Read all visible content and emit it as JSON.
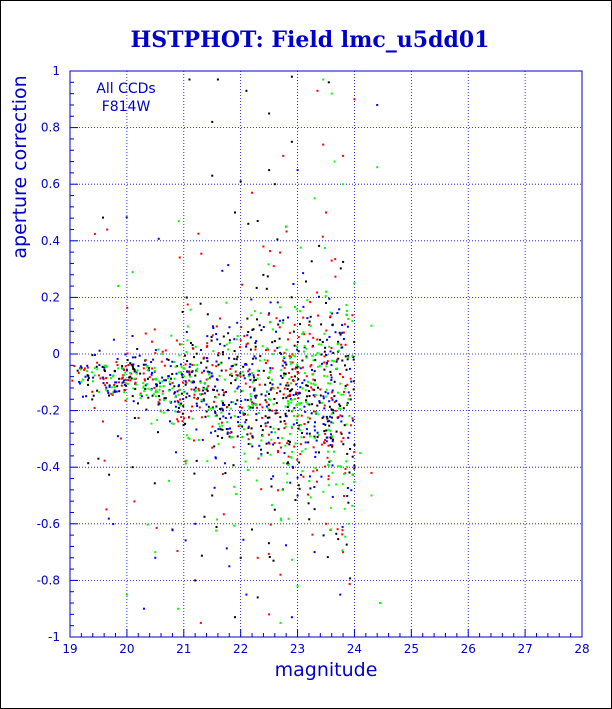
{
  "chart_data": {
    "type": "scatter",
    "title": "HSTPHOT: Field lmc_u5dd01",
    "xlabel": "magnitude",
    "ylabel": "aperture correction",
    "xlim": [
      19,
      28
    ],
    "ylim": [
      -1,
      1
    ],
    "x_ticks": [
      "19",
      "20",
      "21",
      "22",
      "23",
      "24",
      "25",
      "26",
      "27",
      "28"
    ],
    "y_ticks": [
      "-1",
      "-0.8",
      "-0.6",
      "-0.4",
      "-0.2",
      "0",
      "0.2",
      "0.4",
      "0.6",
      "0.8",
      "1"
    ],
    "grid": true,
    "annotations": [
      "All CCDs",
      "F814W"
    ],
    "series": [
      {
        "color": "#000000",
        "seed": 11,
        "core": 430,
        "points": [
          [
            21.1,
            0.97
          ],
          [
            21.6,
            0.97
          ],
          [
            22.1,
            0.93
          ],
          [
            22.9,
            0.98
          ],
          [
            23.55,
            0.96
          ],
          [
            21.5,
            0.82
          ],
          [
            22.5,
            0.85
          ],
          [
            22.9,
            0.75
          ],
          [
            21.5,
            0.63
          ],
          [
            22.0,
            0.61
          ],
          [
            22.5,
            0.65
          ],
          [
            22.6,
            0.6
          ],
          [
            21.9,
            0.5
          ],
          [
            22.3,
            0.47
          ],
          [
            20.1,
            -0.4
          ],
          [
            19.5,
            -0.37
          ],
          [
            21.5,
            -0.5
          ],
          [
            22.2,
            -0.62
          ],
          [
            22.0,
            -0.72
          ],
          [
            21.2,
            -0.8
          ],
          [
            22.3,
            -0.86
          ],
          [
            20.8,
            -0.62
          ],
          [
            22.6,
            -0.55
          ],
          [
            21.9,
            -0.93
          ]
        ]
      },
      {
        "color": "#ff0000",
        "seed": 23,
        "core": 330,
        "points": [
          [
            23.35,
            0.93
          ],
          [
            24.0,
            0.9
          ],
          [
            23.45,
            0.74
          ],
          [
            23.8,
            0.7
          ],
          [
            22.75,
            0.7
          ],
          [
            22.2,
            0.57
          ],
          [
            23.5,
            0.5
          ],
          [
            23.6,
            0.33
          ],
          [
            22.4,
            0.38
          ],
          [
            24.3,
            -0.42
          ],
          [
            23.5,
            -0.6
          ],
          [
            22.7,
            -0.78
          ],
          [
            22.3,
            -0.72
          ],
          [
            21.3,
            -0.95
          ],
          [
            23.8,
            -0.7
          ],
          [
            22.5,
            -0.92
          ]
        ]
      },
      {
        "color": "#0000ff",
        "seed": 37,
        "core": 320,
        "points": [
          [
            24.4,
            0.88
          ],
          [
            23.0,
            0.65
          ],
          [
            22.8,
            0.45
          ],
          [
            23.0,
            -0.5
          ],
          [
            23.3,
            -0.7
          ],
          [
            22.1,
            -0.85
          ],
          [
            20.3,
            -0.9
          ],
          [
            21.8,
            -0.75
          ],
          [
            23.75,
            -0.85
          ],
          [
            21.2,
            -0.6
          ],
          [
            22.9,
            -0.93
          ],
          [
            20.5,
            -0.72
          ]
        ]
      },
      {
        "color": "#00ff00",
        "seed": 53,
        "core": 390,
        "points": [
          [
            23.45,
            0.97
          ],
          [
            23.6,
            0.92
          ],
          [
            23.65,
            0.68
          ],
          [
            24.4,
            0.66
          ],
          [
            23.8,
            0.6
          ],
          [
            23.3,
            0.55
          ],
          [
            23.5,
            0.22
          ],
          [
            24.3,
            0.1
          ],
          [
            24.3,
            -0.5
          ],
          [
            24.45,
            -0.88
          ],
          [
            23.0,
            -0.82
          ],
          [
            20.5,
            -0.7
          ],
          [
            20.9,
            -0.9
          ],
          [
            23.9,
            -0.6
          ],
          [
            24.1,
            -0.35
          ],
          [
            22.7,
            -0.95
          ],
          [
            20.0,
            -0.85
          ],
          [
            21.1,
            -0.3
          ]
        ]
      }
    ]
  }
}
